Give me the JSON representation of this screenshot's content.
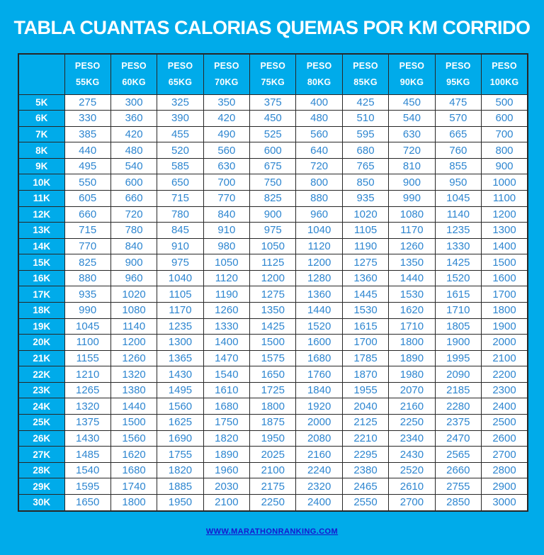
{
  "page": {
    "title": "TABLA CUANTAS CALORIAS QUEMAS POR KM CORRIDO",
    "footer_link": "WWW.MARATHONRANKING.COM"
  },
  "colors": {
    "background": "#00ABEA",
    "header_text": "#FFFFFF",
    "cell_text": "#2E86D0",
    "cell_background": "#FFFFFF",
    "border": "#272727",
    "link": "#1717CF"
  },
  "chart_data": {
    "type": "table",
    "title": "TABLA CUANTAS CALORIAS QUEMAS POR KM CORRIDO",
    "corner_label": "",
    "columns": [
      {
        "top": "PESO",
        "bottom": "55KG"
      },
      {
        "top": "PESO",
        "bottom": "60KG"
      },
      {
        "top": "PESO",
        "bottom": "65KG"
      },
      {
        "top": "PESO",
        "bottom": "70KG"
      },
      {
        "top": "PESO",
        "bottom": "75KG"
      },
      {
        "top": "PESO",
        "bottom": "80KG"
      },
      {
        "top": "PESO",
        "bottom": "85KG"
      },
      {
        "top": "PESO",
        "bottom": "90KG"
      },
      {
        "top": "PESO",
        "bottom": "95KG"
      },
      {
        "top": "PESO",
        "bottom": "100KG"
      }
    ],
    "rows": [
      {
        "label": "5K",
        "values": [
          275,
          300,
          325,
          350,
          375,
          400,
          425,
          450,
          475,
          500
        ]
      },
      {
        "label": "6K",
        "values": [
          330,
          360,
          390,
          420,
          450,
          480,
          510,
          540,
          570,
          600
        ]
      },
      {
        "label": "7K",
        "values": [
          385,
          420,
          455,
          490,
          525,
          560,
          595,
          630,
          665,
          700
        ]
      },
      {
        "label": "8K",
        "values": [
          440,
          480,
          520,
          560,
          600,
          640,
          680,
          720,
          760,
          800
        ]
      },
      {
        "label": "9K",
        "values": [
          495,
          540,
          585,
          630,
          675,
          720,
          765,
          810,
          855,
          900
        ]
      },
      {
        "label": "10K",
        "values": [
          550,
          600,
          650,
          700,
          750,
          800,
          850,
          900,
          950,
          1000
        ]
      },
      {
        "label": "11K",
        "values": [
          605,
          660,
          715,
          770,
          825,
          880,
          935,
          990,
          1045,
          1100
        ]
      },
      {
        "label": "12K",
        "values": [
          660,
          720,
          780,
          840,
          900,
          960,
          1020,
          1080,
          1140,
          1200
        ]
      },
      {
        "label": "13K",
        "values": [
          715,
          780,
          845,
          910,
          975,
          1040,
          1105,
          1170,
          1235,
          1300
        ]
      },
      {
        "label": "14K",
        "values": [
          770,
          840,
          910,
          980,
          1050,
          1120,
          1190,
          1260,
          1330,
          1400
        ]
      },
      {
        "label": "15K",
        "values": [
          825,
          900,
          975,
          1050,
          1125,
          1200,
          1275,
          1350,
          1425,
          1500
        ]
      },
      {
        "label": "16K",
        "values": [
          880,
          960,
          1040,
          1120,
          1200,
          1280,
          1360,
          1440,
          1520,
          1600
        ]
      },
      {
        "label": "17K",
        "values": [
          935,
          1020,
          1105,
          1190,
          1275,
          1360,
          1445,
          1530,
          1615,
          1700
        ]
      },
      {
        "label": "18K",
        "values": [
          990,
          1080,
          1170,
          1260,
          1350,
          1440,
          1530,
          1620,
          1710,
          1800
        ]
      },
      {
        "label": "19K",
        "values": [
          1045,
          1140,
          1235,
          1330,
          1425,
          1520,
          1615,
          1710,
          1805,
          1900
        ]
      },
      {
        "label": "20K",
        "values": [
          1100,
          1200,
          1300,
          1400,
          1500,
          1600,
          1700,
          1800,
          1900,
          2000
        ]
      },
      {
        "label": "21K",
        "values": [
          1155,
          1260,
          1365,
          1470,
          1575,
          1680,
          1785,
          1890,
          1995,
          2100
        ]
      },
      {
        "label": "22K",
        "values": [
          1210,
          1320,
          1430,
          1540,
          1650,
          1760,
          1870,
          1980,
          2090,
          2200
        ]
      },
      {
        "label": "23K",
        "values": [
          1265,
          1380,
          1495,
          1610,
          1725,
          1840,
          1955,
          2070,
          2185,
          2300
        ]
      },
      {
        "label": "24K",
        "values": [
          1320,
          1440,
          1560,
          1680,
          1800,
          1920,
          2040,
          2160,
          2280,
          2400
        ]
      },
      {
        "label": "25K",
        "values": [
          1375,
          1500,
          1625,
          1750,
          1875,
          2000,
          2125,
          2250,
          2375,
          2500
        ]
      },
      {
        "label": "26K",
        "values": [
          1430,
          1560,
          1690,
          1820,
          1950,
          2080,
          2210,
          2340,
          2470,
          2600
        ]
      },
      {
        "label": "27K",
        "values": [
          1485,
          1620,
          1755,
          1890,
          2025,
          2160,
          2295,
          2430,
          2565,
          2700
        ]
      },
      {
        "label": "28K",
        "values": [
          1540,
          1680,
          1820,
          1960,
          2100,
          2240,
          2380,
          2520,
          2660,
          2800
        ]
      },
      {
        "label": "29K",
        "values": [
          1595,
          1740,
          1885,
          2030,
          2175,
          2320,
          2465,
          2610,
          2755,
          2900
        ]
      },
      {
        "label": "30K",
        "values": [
          1650,
          1800,
          1950,
          2100,
          2250,
          2400,
          2550,
          2700,
          2850,
          3000
        ]
      }
    ]
  }
}
